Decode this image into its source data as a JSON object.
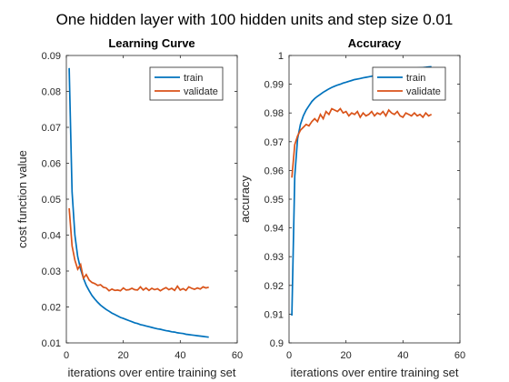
{
  "figure_title": "One hidden layer with 100 hidden units and step size 0.01",
  "colors": {
    "train": "#0072BD",
    "validate": "#D95319",
    "axis": "#262626",
    "background": "#ffffff"
  },
  "chart_data": [
    {
      "type": "line",
      "title": "Learning Curve",
      "xlabel": "iterations over entire training set",
      "ylabel": "cost function value",
      "xlim": [
        0,
        60
      ],
      "ylim": [
        0.01,
        0.09
      ],
      "xticks": [
        0,
        20,
        40,
        60
      ],
      "yticks": [
        0.01,
        0.02,
        0.03,
        0.04,
        0.05,
        0.06,
        0.07,
        0.08,
        0.09
      ],
      "ytick_labels": [
        "0.01",
        "0.02",
        "0.03",
        "0.04",
        "0.05",
        "0.06",
        "0.07",
        "0.08",
        "0.09"
      ],
      "grid": false,
      "legend_position": "top-right",
      "series": [
        {
          "name": "train",
          "x": [
            1,
            2,
            3,
            4,
            5,
            6,
            7,
            8,
            9,
            10,
            11,
            12,
            13,
            14,
            15,
            16,
            17,
            18,
            19,
            20,
            21,
            22,
            23,
            24,
            25,
            26,
            27,
            28,
            29,
            30,
            31,
            32,
            33,
            34,
            35,
            36,
            37,
            38,
            39,
            40,
            41,
            42,
            43,
            44,
            45,
            46,
            47,
            48,
            49,
            50
          ],
          "values": [
            0.0865,
            0.052,
            0.04,
            0.034,
            0.0305,
            0.028,
            0.026,
            0.0245,
            0.0232,
            0.0222,
            0.0213,
            0.0205,
            0.0199,
            0.0193,
            0.0188,
            0.0183,
            0.0179,
            0.0175,
            0.0171,
            0.0168,
            0.0165,
            0.0162,
            0.0159,
            0.0156,
            0.0154,
            0.0151,
            0.0149,
            0.0147,
            0.0145,
            0.0143,
            0.0141,
            0.0139,
            0.0138,
            0.0136,
            0.0134,
            0.0133,
            0.0131,
            0.013,
            0.0128,
            0.0127,
            0.0126,
            0.0124,
            0.0123,
            0.0122,
            0.0121,
            0.012,
            0.0119,
            0.0118,
            0.0117,
            0.0116
          ]
        },
        {
          "name": "validate",
          "x": [
            1,
            2,
            3,
            4,
            5,
            6,
            7,
            8,
            9,
            10,
            11,
            12,
            13,
            14,
            15,
            16,
            17,
            18,
            19,
            20,
            21,
            22,
            23,
            24,
            25,
            26,
            27,
            28,
            29,
            30,
            31,
            32,
            33,
            34,
            35,
            36,
            37,
            38,
            39,
            40,
            41,
            42,
            43,
            44,
            45,
            46,
            47,
            48,
            49,
            50
          ],
          "values": [
            0.0475,
            0.037,
            0.033,
            0.0305,
            0.0318,
            0.028,
            0.029,
            0.0275,
            0.0268,
            0.0265,
            0.026,
            0.0262,
            0.0255,
            0.0253,
            0.0245,
            0.025,
            0.0246,
            0.0247,
            0.0245,
            0.0253,
            0.0247,
            0.0248,
            0.0252,
            0.0248,
            0.0247,
            0.0256,
            0.0247,
            0.0253,
            0.0246,
            0.0252,
            0.0248,
            0.0251,
            0.0245,
            0.025,
            0.0254,
            0.0248,
            0.0252,
            0.0246,
            0.0258,
            0.0247,
            0.0251,
            0.0246,
            0.0256,
            0.0252,
            0.0249,
            0.0253,
            0.025,
            0.0256,
            0.0253,
            0.0255
          ]
        }
      ]
    },
    {
      "type": "line",
      "title": "Accuracy",
      "xlabel": "iterations over entire training set",
      "ylabel": "accuracy",
      "xlim": [
        0,
        60
      ],
      "ylim": [
        0.9,
        1.0
      ],
      "xticks": [
        0,
        20,
        40,
        60
      ],
      "yticks": [
        0.9,
        0.91,
        0.92,
        0.93,
        0.94,
        0.95,
        0.96,
        0.97,
        0.98,
        0.99,
        1.0
      ],
      "ytick_labels": [
        "0.9",
        "0.91",
        "0.92",
        "0.93",
        "0.94",
        "0.95",
        "0.96",
        "0.97",
        "0.98",
        "0.99",
        "1"
      ],
      "grid": false,
      "legend_position": "top-right",
      "series": [
        {
          "name": "train",
          "x": [
            1,
            2,
            3,
            4,
            5,
            6,
            7,
            8,
            9,
            10,
            11,
            12,
            13,
            14,
            15,
            16,
            17,
            18,
            19,
            20,
            21,
            22,
            23,
            24,
            25,
            26,
            27,
            28,
            29,
            30,
            31,
            32,
            33,
            34,
            35,
            36,
            37,
            38,
            39,
            40,
            41,
            42,
            43,
            44,
            45,
            46,
            47,
            48,
            49,
            50
          ],
          "values": [
            0.9095,
            0.958,
            0.971,
            0.976,
            0.979,
            0.981,
            0.9825,
            0.984,
            0.985,
            0.9858,
            0.9865,
            0.9872,
            0.9878,
            0.9884,
            0.9889,
            0.9893,
            0.9897,
            0.99,
            0.9904,
            0.9907,
            0.991,
            0.9913,
            0.9916,
            0.9918,
            0.992,
            0.9922,
            0.9924,
            0.9926,
            0.9928,
            0.993,
            0.9932,
            0.9934,
            0.9936,
            0.9938,
            0.994,
            0.9942,
            0.9944,
            0.9946,
            0.9948,
            0.995,
            0.9952,
            0.9953,
            0.9954,
            0.9955,
            0.9956,
            0.9957,
            0.9958,
            0.9959,
            0.996,
            0.9961
          ]
        },
        {
          "name": "validate",
          "x": [
            1,
            2,
            3,
            4,
            5,
            6,
            7,
            8,
            9,
            10,
            11,
            12,
            13,
            14,
            15,
            16,
            17,
            18,
            19,
            20,
            21,
            22,
            23,
            24,
            25,
            26,
            27,
            28,
            29,
            30,
            31,
            32,
            33,
            34,
            35,
            36,
            37,
            38,
            39,
            40,
            41,
            42,
            43,
            44,
            45,
            46,
            47,
            48,
            49,
            50
          ],
          "values": [
            0.9575,
            0.969,
            0.972,
            0.974,
            0.975,
            0.976,
            0.9755,
            0.977,
            0.978,
            0.977,
            0.9795,
            0.978,
            0.9805,
            0.9795,
            0.9815,
            0.981,
            0.9805,
            0.9815,
            0.98,
            0.9805,
            0.979,
            0.98,
            0.9795,
            0.9805,
            0.9785,
            0.98,
            0.979,
            0.9795,
            0.9805,
            0.979,
            0.98,
            0.9795,
            0.9805,
            0.979,
            0.981,
            0.98,
            0.9795,
            0.9805,
            0.979,
            0.9785,
            0.98,
            0.9795,
            0.979,
            0.98,
            0.979,
            0.9795,
            0.9785,
            0.98,
            0.979,
            0.9795
          ]
        }
      ]
    }
  ]
}
